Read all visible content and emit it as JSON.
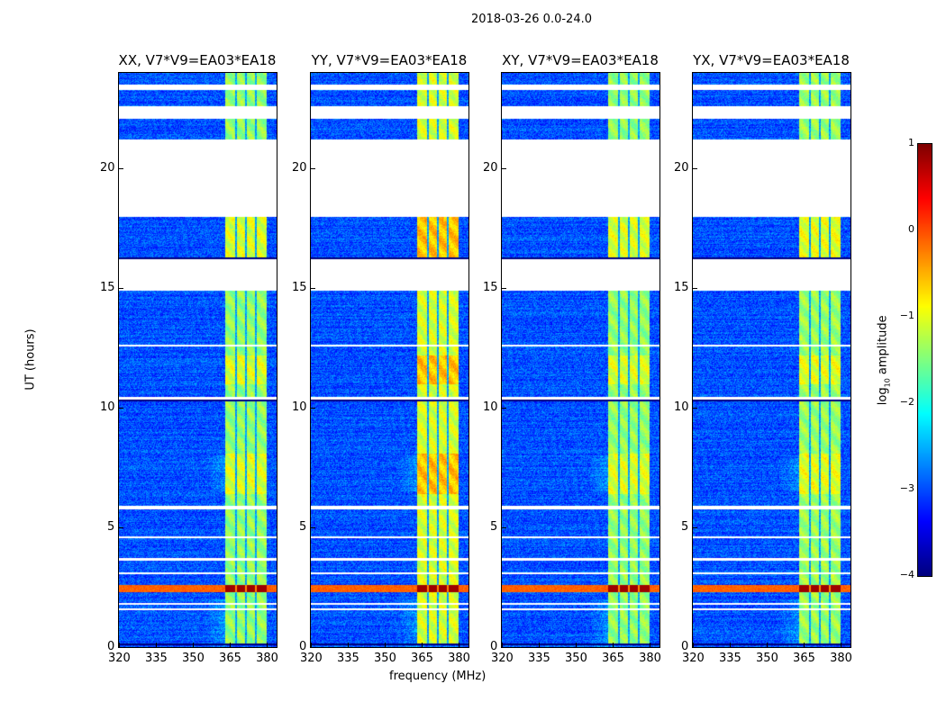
{
  "chart_data": {
    "type": "heatmap",
    "title": "2018-03-26 0.0-24.0",
    "xlabel": "frequency (MHz)",
    "ylabel": "UT (hours)",
    "xlim": [
      320,
      384
    ],
    "ylim": [
      0,
      24
    ],
    "xticks": [
      "320",
      "335",
      "350",
      "365",
      "380"
    ],
    "xtick_values": [
      320,
      335,
      350,
      365,
      380
    ],
    "yticks": [
      "0",
      "5",
      "10",
      "15",
      "20"
    ],
    "ytick_values": [
      0,
      5,
      10,
      15,
      20
    ],
    "panels": [
      {
        "title": "XX, V7*V9=EA03*EA18",
        "strength": 1.0
      },
      {
        "title": "YY, V7*V9=EA03*EA18",
        "strength": 1.4
      },
      {
        "title": "XY, V7*V9=EA03*EA18",
        "strength": 1.0
      },
      {
        "title": "YX, V7*V9=EA03*EA18",
        "strength": 1.05
      }
    ],
    "rfi_band_mhz": [
      363,
      380
    ],
    "rfi_gaps_mhz": [
      367.5,
      371.5,
      375.5
    ],
    "strong_rfi_hours": [
      2.3,
      2.6
    ],
    "flagged_hours": [
      [
        23.3,
        23.5
      ],
      [
        22.1,
        22.6
      ],
      [
        18.0,
        21.2
      ],
      [
        14.9,
        16.2
      ],
      [
        12.55,
        12.65
      ],
      [
        10.35,
        10.45
      ],
      [
        5.75,
        5.9
      ],
      [
        4.55,
        4.62
      ],
      [
        3.6,
        3.72
      ],
      [
        3.05,
        3.12
      ],
      [
        1.78,
        1.84
      ],
      [
        1.55,
        1.62
      ]
    ],
    "colorbar": {
      "label_prefix": "log",
      "label_sub": "10",
      "label_suffix": " amplitude",
      "range": [
        -4,
        1
      ],
      "ticks": [
        "1",
        "0",
        "−1",
        "−2",
        "−3",
        "−4"
      ],
      "tick_values": [
        1,
        0,
        -1,
        -2,
        -3,
        -4
      ],
      "colormap": "jet"
    }
  }
}
